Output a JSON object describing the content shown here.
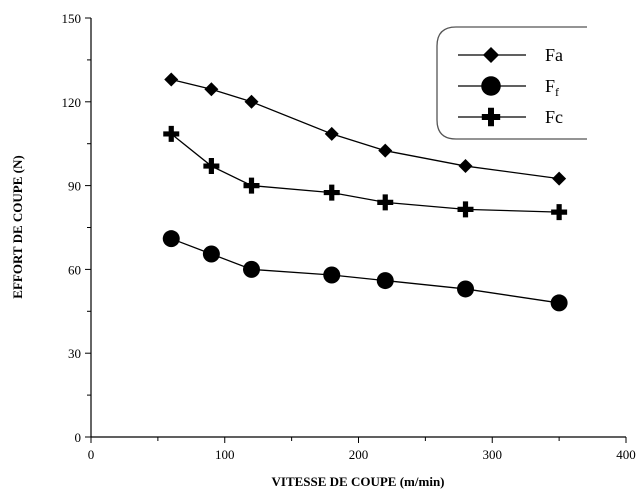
{
  "chart_data": {
    "type": "line",
    "title": "",
    "xlabel": "VITESSE DE COUPE (m/min)",
    "ylabel": "EFFORT DE COUPE (N)",
    "xlim": [
      0,
      400
    ],
    "ylim": [
      0,
      150
    ],
    "xticks": [
      0,
      100,
      200,
      300,
      400
    ],
    "yticks": [
      0,
      30,
      60,
      90,
      120,
      150
    ],
    "grid": false,
    "legend_position": "top-right",
    "x": [
      60,
      90,
      120,
      180,
      220,
      280,
      350
    ],
    "series": [
      {
        "name": "Fa",
        "marker": "diamond",
        "values": [
          128,
          124.5,
          120,
          108.5,
          102.5,
          97,
          92.5
        ]
      },
      {
        "name": "Ff",
        "name_main": "F",
        "name_sub": "f",
        "marker": "circle",
        "values": [
          71,
          65.5,
          60,
          58,
          56,
          53,
          48
        ]
      },
      {
        "name": "Fc",
        "marker": "plus",
        "values": [
          108.5,
          97,
          90,
          87.5,
          84,
          81.5,
          80.5
        ]
      }
    ],
    "colors": {
      "line": "#000000",
      "marker": "#000000",
      "legend_border": "#555555"
    }
  }
}
